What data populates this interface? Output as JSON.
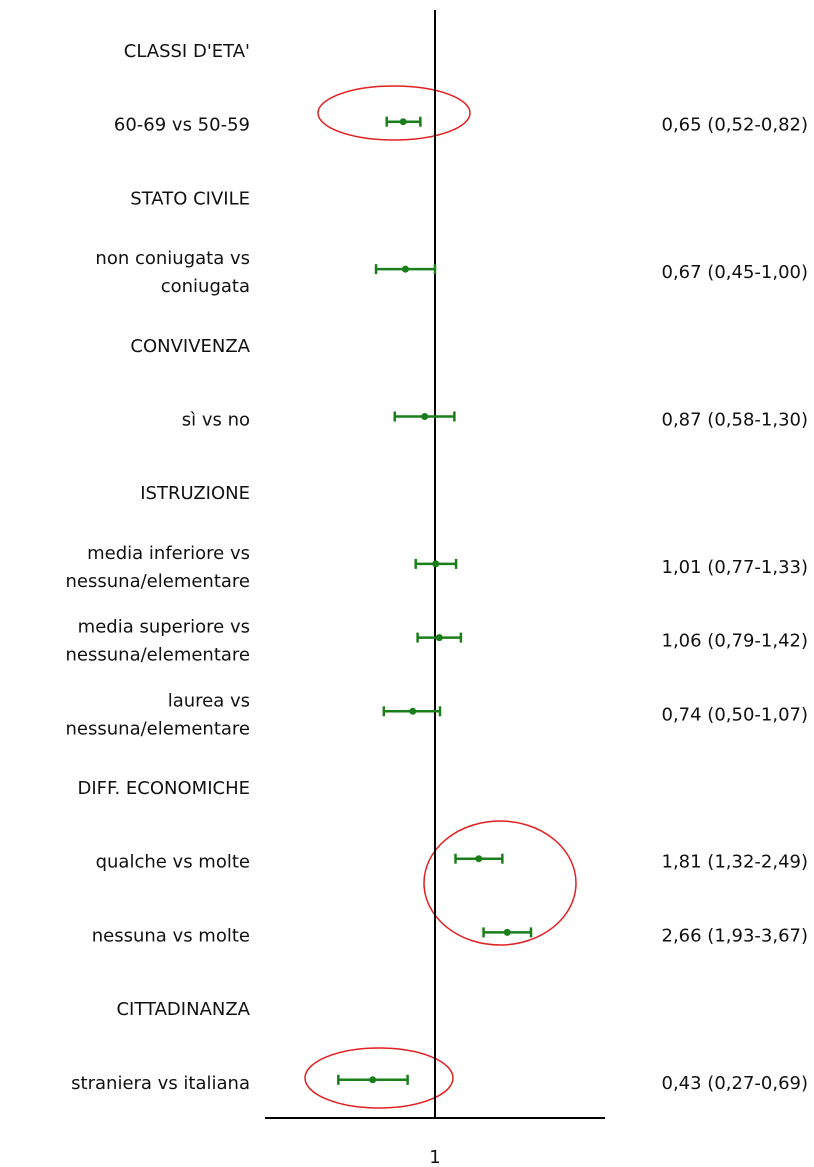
{
  "chart_data": {
    "type": "forest",
    "log_x": true,
    "xlim": [
      0.1,
      10
    ],
    "xticks": [
      1
    ],
    "color": "#1a7f1a",
    "groups": [
      {
        "name": "CLASSI D'ETA'",
        "categories": [
          "60-69 vs 50-59"
        ],
        "values": [
          0.65
        ],
        "ci_low": [
          0.52
        ],
        "ci_high": [
          0.82
        ],
        "value_labels": [
          "0,65 (0,52-0,82)"
        ]
      },
      {
        "name": "STATO CIVILE",
        "categories": [
          "non coniugata vs\nconiugata"
        ],
        "values": [
          0.67
        ],
        "ci_low": [
          0.45
        ],
        "ci_high": [
          1.0
        ],
        "value_labels": [
          "0,67 (0,45-1,00)"
        ]
      },
      {
        "name": "CONVIVENZA",
        "categories": [
          "sì vs no"
        ],
        "values": [
          0.87
        ],
        "ci_low": [
          0.58
        ],
        "ci_high": [
          1.3
        ],
        "value_labels": [
          "0,87 (0,58-1,30)"
        ]
      },
      {
        "name": "ISTRUZIONE",
        "categories": [
          "media inferiore vs\nnessuna/elementare",
          "media superiore vs\nnessuna/elementare",
          "laurea vs\nnessuna/elementare"
        ],
        "values": [
          1.01,
          1.06,
          0.74
        ],
        "ci_low": [
          0.77,
          0.79,
          0.5
        ],
        "ci_high": [
          1.33,
          1.42,
          1.07
        ],
        "value_labels": [
          "1,01 (0,77-1,33)",
          "1,06 (0,79-1,42)",
          "0,74 (0,50-1,07)"
        ]
      },
      {
        "name": "DIFF. ECONOMICHE",
        "categories": [
          "qualche vs molte",
          "nessuna vs molte"
        ],
        "values": [
          1.81,
          2.66
        ],
        "ci_low": [
          1.32,
          1.93
        ],
        "ci_high": [
          2.49,
          3.67
        ],
        "value_labels": [
          "1,81 (1,32-2,49)",
          "2,66 (1,93-3,67)"
        ]
      },
      {
        "name": "CITTADINANZA",
        "categories": [
          "straniera vs italiana"
        ],
        "values": [
          0.43
        ],
        "ci_low": [
          0.27
        ],
        "ci_high": [
          0.69
        ],
        "value_labels": [
          "0,43 (0,27-0,69)"
        ]
      }
    ]
  }
}
